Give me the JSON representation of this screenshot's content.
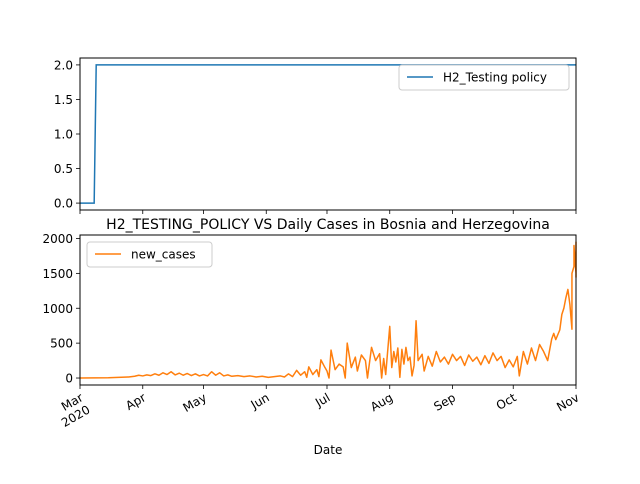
{
  "chart_data": [
    {
      "type": "line",
      "title": "",
      "xlabel": "",
      "ylabel": "",
      "xlim": [
        "2020-03-01",
        "2020-11-01"
      ],
      "ylim": [
        -0.1,
        2.1
      ],
      "yticks": [
        0.0,
        0.5,
        1.0,
        1.5,
        2.0
      ],
      "ytick_labels": [
        "0.0",
        "0.5",
        "1.0",
        "1.5",
        "2.0"
      ],
      "legend": {
        "position": "upper right",
        "entries": [
          "H2_Testing policy"
        ]
      },
      "grid": false,
      "series": [
        {
          "name": "H2_Testing policy",
          "color": "#1f77b4",
          "points": [
            [
              "2020-03-01",
              0
            ],
            [
              "2020-03-08",
              0
            ],
            [
              "2020-03-09",
              2
            ],
            [
              "2020-11-01",
              2
            ]
          ]
        }
      ]
    },
    {
      "type": "line",
      "title": "H2_TESTING_POLICY VS Daily Cases in Bosnia and Herzegovina",
      "xlabel": "Date",
      "ylabel": "",
      "xlim": [
        "2020-03-01",
        "2020-11-01"
      ],
      "ylim": [
        -100,
        2050
      ],
      "yticks": [
        0,
        500,
        1000,
        1500,
        2000
      ],
      "ytick_labels": [
        "0",
        "500",
        "1000",
        "1500",
        "2000"
      ],
      "xticks": [
        "2020-03-01",
        "2020-04-01",
        "2020-05-01",
        "2020-06-01",
        "2020-07-01",
        "2020-08-01",
        "2020-09-01",
        "2020-10-01",
        "2020-11-01"
      ],
      "xtick_labels": [
        "Mar\n2020",
        "Apr",
        "May",
        "Jun",
        "Jul",
        "Aug",
        "Sep",
        "Oct",
        "Nov"
      ],
      "legend": {
        "position": "upper left",
        "entries": [
          "new_cases"
        ]
      },
      "grid": false,
      "series": [
        {
          "name": "new_cases",
          "color": "#ff7f0e",
          "points": [
            [
              "2020-03-01",
              0
            ],
            [
              "2020-03-15",
              3
            ],
            [
              "2020-03-25",
              15
            ],
            [
              "2020-03-28",
              25
            ],
            [
              "2020-03-30",
              40
            ],
            [
              "2020-04-01",
              30
            ],
            [
              "2020-04-03",
              45
            ],
            [
              "2020-04-05",
              35
            ],
            [
              "2020-04-07",
              60
            ],
            [
              "2020-04-09",
              40
            ],
            [
              "2020-04-11",
              75
            ],
            [
              "2020-04-13",
              50
            ],
            [
              "2020-04-15",
              90
            ],
            [
              "2020-04-17",
              45
            ],
            [
              "2020-04-19",
              70
            ],
            [
              "2020-04-21",
              40
            ],
            [
              "2020-04-23",
              65
            ],
            [
              "2020-04-25",
              35
            ],
            [
              "2020-04-27",
              60
            ],
            [
              "2020-04-29",
              30
            ],
            [
              "2020-05-01",
              50
            ],
            [
              "2020-05-03",
              30
            ],
            [
              "2020-05-05",
              90
            ],
            [
              "2020-05-07",
              40
            ],
            [
              "2020-05-09",
              75
            ],
            [
              "2020-05-11",
              30
            ],
            [
              "2020-05-13",
              45
            ],
            [
              "2020-05-15",
              25
            ],
            [
              "2020-05-18",
              35
            ],
            [
              "2020-05-21",
              20
            ],
            [
              "2020-05-24",
              30
            ],
            [
              "2020-05-27",
              15
            ],
            [
              "2020-05-30",
              25
            ],
            [
              "2020-06-02",
              10
            ],
            [
              "2020-06-05",
              20
            ],
            [
              "2020-06-08",
              30
            ],
            [
              "2020-06-10",
              15
            ],
            [
              "2020-06-12",
              60
            ],
            [
              "2020-06-14",
              20
            ],
            [
              "2020-06-16",
              110
            ],
            [
              "2020-06-18",
              40
            ],
            [
              "2020-06-20",
              90
            ],
            [
              "2020-06-21",
              10
            ],
            [
              "2020-06-22",
              160
            ],
            [
              "2020-06-24",
              50
            ],
            [
              "2020-06-26",
              120
            ],
            [
              "2020-06-27",
              20
            ],
            [
              "2020-06-28",
              260
            ],
            [
              "2020-06-30",
              150
            ],
            [
              "2020-07-01",
              100
            ],
            [
              "2020-07-02",
              0
            ],
            [
              "2020-07-03",
              400
            ],
            [
              "2020-07-05",
              120
            ],
            [
              "2020-07-07",
              200
            ],
            [
              "2020-07-09",
              160
            ],
            [
              "2020-07-10",
              0
            ],
            [
              "2020-07-11",
              500
            ],
            [
              "2020-07-13",
              150
            ],
            [
              "2020-07-15",
              300
            ],
            [
              "2020-07-16",
              100
            ],
            [
              "2020-07-18",
              330
            ],
            [
              "2020-07-20",
              250
            ],
            [
              "2020-07-21",
              0
            ],
            [
              "2020-07-23",
              440
            ],
            [
              "2020-07-25",
              250
            ],
            [
              "2020-07-27",
              350
            ],
            [
              "2020-07-28",
              0
            ],
            [
              "2020-07-29",
              280
            ],
            [
              "2020-07-30",
              50
            ],
            [
              "2020-08-01",
              740
            ],
            [
              "2020-08-02",
              150
            ],
            [
              "2020-08-03",
              380
            ],
            [
              "2020-08-04",
              230
            ],
            [
              "2020-08-05",
              430
            ],
            [
              "2020-08-06",
              10
            ],
            [
              "2020-08-07",
              410
            ],
            [
              "2020-08-08",
              200
            ],
            [
              "2020-08-09",
              440
            ],
            [
              "2020-08-10",
              250
            ],
            [
              "2020-08-11",
              300
            ],
            [
              "2020-08-12",
              30
            ],
            [
              "2020-08-13",
              180
            ],
            [
              "2020-08-14",
              820
            ],
            [
              "2020-08-15",
              250
            ],
            [
              "2020-08-17",
              340
            ],
            [
              "2020-08-18",
              100
            ],
            [
              "2020-08-20",
              310
            ],
            [
              "2020-08-22",
              170
            ],
            [
              "2020-08-24",
              380
            ],
            [
              "2020-08-26",
              230
            ],
            [
              "2020-08-28",
              300
            ],
            [
              "2020-08-30",
              200
            ],
            [
              "2020-09-01",
              340
            ],
            [
              "2020-09-03",
              250
            ],
            [
              "2020-09-05",
              310
            ],
            [
              "2020-09-07",
              180
            ],
            [
              "2020-09-09",
              330
            ],
            [
              "2020-09-11",
              240
            ],
            [
              "2020-09-13",
              300
            ],
            [
              "2020-09-15",
              190
            ],
            [
              "2020-09-17",
              320
            ],
            [
              "2020-09-19",
              210
            ],
            [
              "2020-09-21",
              360
            ],
            [
              "2020-09-23",
              250
            ],
            [
              "2020-09-25",
              310
            ],
            [
              "2020-09-27",
              150
            ],
            [
              "2020-09-29",
              260
            ],
            [
              "2020-10-01",
              160
            ],
            [
              "2020-10-03",
              310
            ],
            [
              "2020-10-04",
              30
            ],
            [
              "2020-10-06",
              380
            ],
            [
              "2020-10-08",
              200
            ],
            [
              "2020-10-10",
              430
            ],
            [
              "2020-10-12",
              250
            ],
            [
              "2020-10-14",
              480
            ],
            [
              "2020-10-16",
              380
            ],
            [
              "2020-10-18",
              250
            ],
            [
              "2020-10-20",
              560
            ],
            [
              "2020-10-21",
              640
            ],
            [
              "2020-10-22",
              550
            ],
            [
              "2020-10-24",
              690
            ],
            [
              "2020-10-25",
              910
            ],
            [
              "2020-10-26",
              1000
            ],
            [
              "2020-10-27",
              1150
            ],
            [
              "2020-10-28",
              1270
            ],
            [
              "2020-10-29",
              1050
            ],
            [
              "2020-10-30",
              700
            ],
            [
              "2020-10-30",
              1500
            ],
            [
              "2020-10-31",
              1600
            ],
            [
              "2020-10-31",
              1900
            ],
            [
              "2020-11-01",
              1500
            ],
            [
              "2020-11-01",
              1950
            ],
            [
              "2020-11-01",
              1440
            ]
          ]
        }
      ]
    }
  ]
}
